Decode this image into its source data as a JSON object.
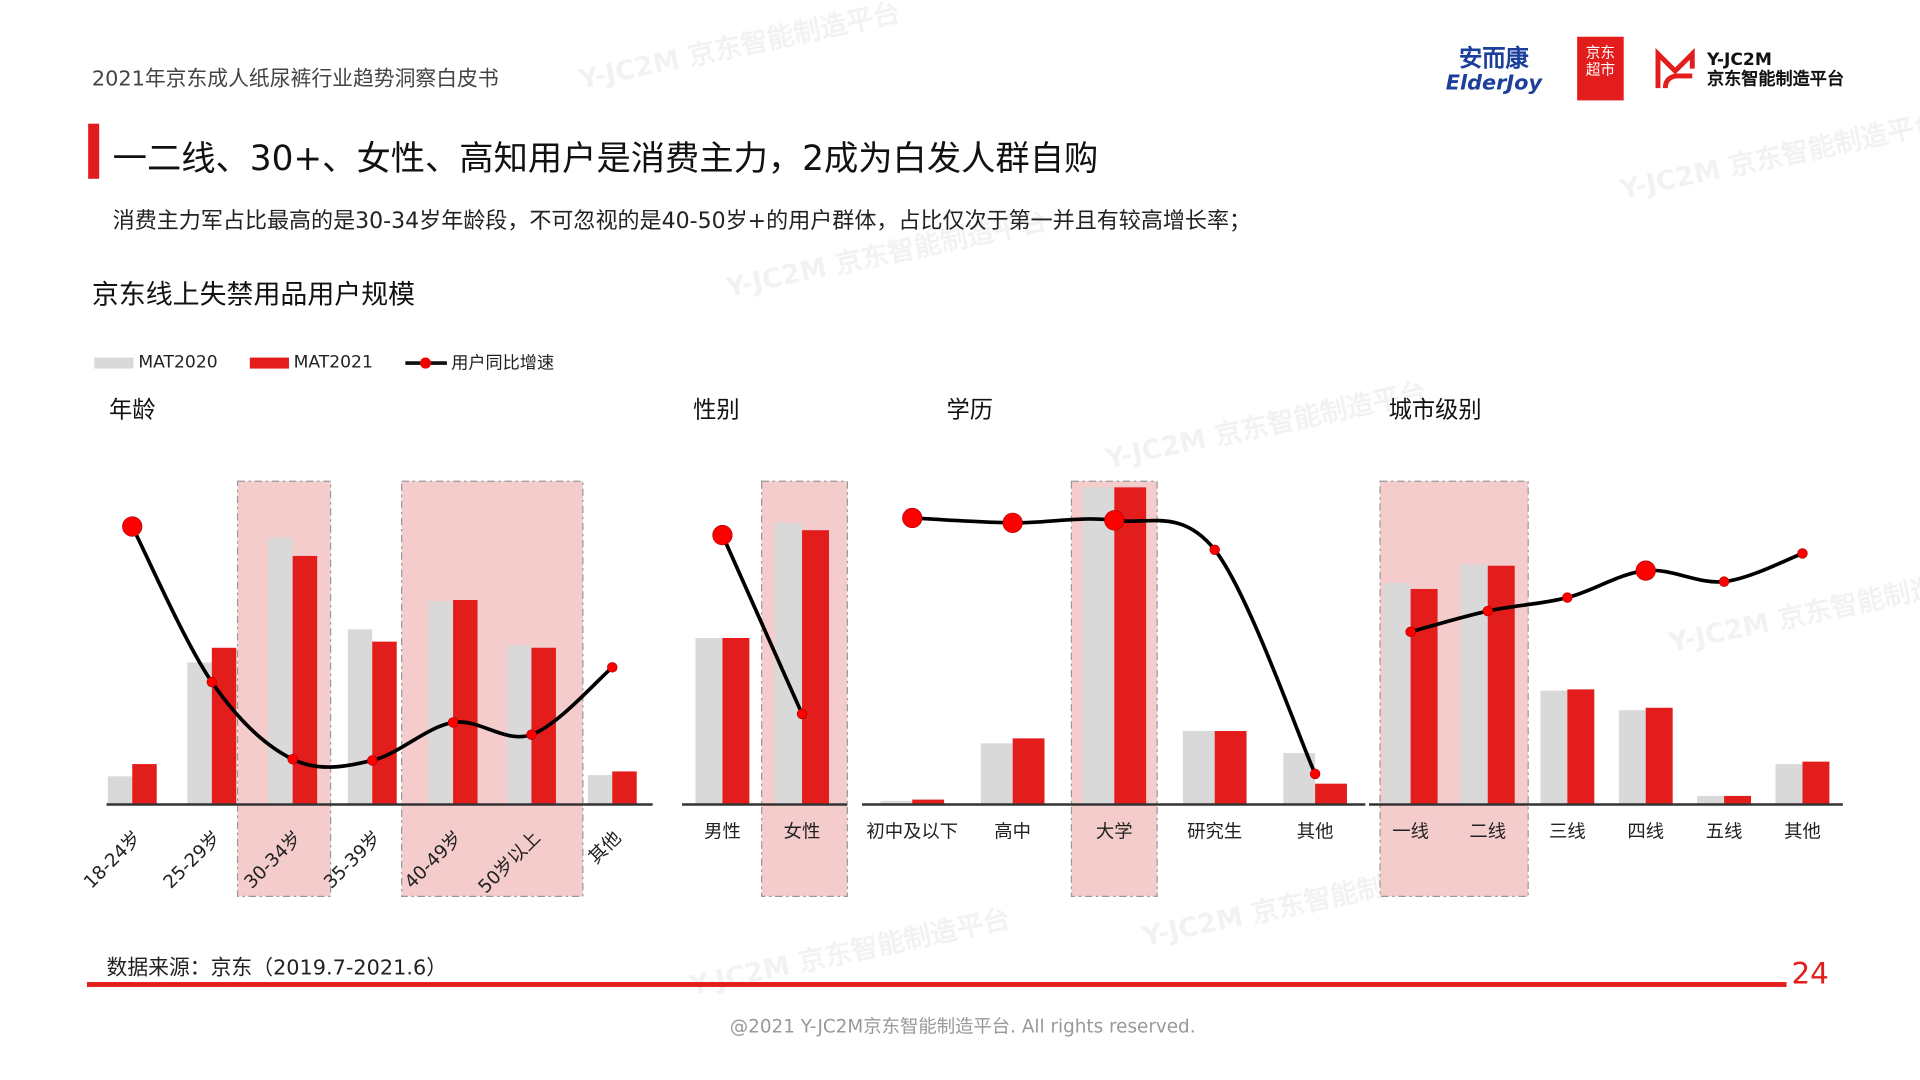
{
  "header": {
    "doc_title": "2021年京东成人纸尿裤行业趋势洞察白皮书",
    "logos": {
      "anerkang": "安而康 ElderJoy",
      "jd_supermarket": "京东超市",
      "yjc2m": "Y-JC2M",
      "yjc2m_sub": "京东智能制造平台"
    }
  },
  "heading": "一二线、30+、女性、高知用户是消费主力，2成为白发人群自购",
  "subtitle": "消费主力军占比最高的是30-34岁年龄段，不可忽视的是40-50岁+的用户群体，占比仅次于第一并且有较高增长率；",
  "section_title": "京东线上失禁用品用户规模",
  "legend": {
    "mat2020": "MAT2020",
    "mat2021": "MAT2021",
    "growth": "用户同比增速"
  },
  "colors": {
    "mat2020": "#d9d9d9",
    "mat2021": "#e31c1c",
    "highlight": "#f5cccc",
    "growth_line": "#000000",
    "growth_dot": "#ff0000"
  },
  "chart_data": [
    {
      "type": "bar",
      "title": "年龄",
      "categories": [
        "18-24岁",
        "25-29岁",
        "30-34岁",
        "35-39岁",
        "40-49岁",
        "50岁以上",
        "其他"
      ],
      "series": [
        {
          "name": "MAT2020",
          "values": [
            23,
            116,
            218,
            143,
            166,
            130,
            24
          ]
        },
        {
          "name": "MAT2021",
          "values": [
            33,
            128,
            203,
            133,
            167,
            128,
            27
          ]
        }
      ],
      "growth": {
        "name": "用户同比增速",
        "values": [
          227,
          100,
          37,
          36,
          67,
          57,
          112
        ]
      },
      "highlighted": [
        "30-34岁",
        "40-49岁",
        "50岁以上"
      ]
    },
    {
      "type": "bar",
      "title": "性别",
      "categories": [
        "男性",
        "女性"
      ],
      "series": [
        {
          "name": "MAT2020",
          "values": [
            136,
            230
          ]
        },
        {
          "name": "MAT2021",
          "values": [
            136,
            224
          ]
        }
      ],
      "growth": {
        "name": "用户同比增速",
        "values": [
          220,
          74
        ]
      },
      "highlighted": [
        "女性"
      ]
    },
    {
      "type": "bar",
      "title": "学历",
      "categories": [
        "初中及以下",
        "高中",
        "大学",
        "研究生",
        "其他"
      ],
      "series": [
        {
          "name": "MAT2020",
          "values": [
            3,
            50,
            259,
            60,
            42
          ]
        },
        {
          "name": "MAT2021",
          "values": [
            4,
            54,
            259,
            60,
            17
          ]
        }
      ],
      "growth": {
        "name": "用户同比增速",
        "values": [
          234,
          230,
          232,
          208,
          25
        ]
      },
      "highlighted": [
        "大学"
      ]
    },
    {
      "type": "bar",
      "title": "城市级别",
      "categories": [
        "一线",
        "二线",
        "三线",
        "四线",
        "五线",
        "其他"
      ],
      "series": [
        {
          "name": "MAT2020",
          "values": [
            181,
            196,
            93,
            77,
            7,
            33
          ]
        },
        {
          "name": "MAT2021",
          "values": [
            176,
            195,
            94,
            79,
            7,
            35
          ]
        }
      ],
      "growth": {
        "name": "用户同比增速",
        "values": [
          141,
          158,
          169,
          191,
          182,
          205
        ]
      },
      "highlighted": [
        "一线",
        "二线"
      ]
    }
  ],
  "source": "数据来源：京东（2019.7-2021.6）",
  "page_number": "24",
  "footer": "@2021 Y-JC2M京东智能制造平台. All rights reserved.",
  "watermark": "Y-JC2M 京东智能制造平台"
}
